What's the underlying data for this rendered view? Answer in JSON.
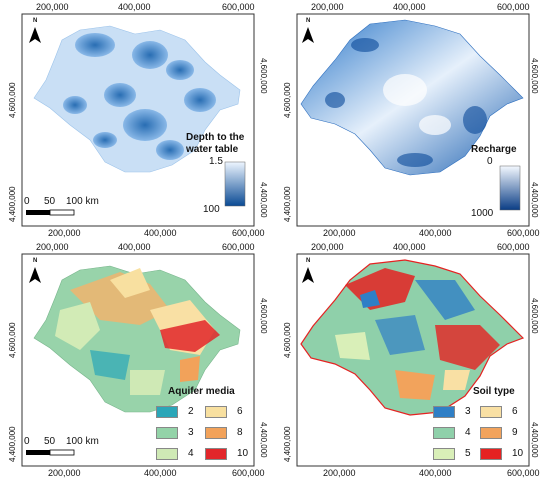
{
  "axes": {
    "x_ticks": [
      "200,000",
      "400,000",
      "600,000"
    ],
    "y_ticks": [
      "4,600,000",
      "4,400,000"
    ]
  },
  "north_label": "N",
  "scale_bar": {
    "labels": [
      "0",
      "50",
      "100 km"
    ]
  },
  "panels": [
    {
      "id": "depth",
      "legend_title": "Depth to the water table",
      "legend_title_lines": [
        "Depth to the",
        "water table"
      ],
      "ramp_min": "1.5",
      "ramp_max": "100",
      "ramp_colors": [
        "#e9f3ff",
        "#08458f"
      ]
    },
    {
      "id": "recharge",
      "legend_title": "Recharge",
      "ramp_min": "0",
      "ramp_max": "1000",
      "ramp_colors": [
        "#f4f9ff",
        "#0a3d85"
      ]
    },
    {
      "id": "aquifer",
      "legend_title": "Aquifer media",
      "classes": [
        {
          "value": "2",
          "color": "#2aa6b8"
        },
        {
          "value": "3",
          "color": "#93d3a8"
        },
        {
          "value": "4",
          "color": "#cfe9b5"
        },
        {
          "value": "6",
          "color": "#f8e0a0"
        },
        {
          "value": "8",
          "color": "#f2a25a"
        },
        {
          "value": "10",
          "color": "#e2262a"
        }
      ]
    },
    {
      "id": "soil",
      "legend_title": "Soil type",
      "classes": [
        {
          "value": "3",
          "color": "#2f7fc6"
        },
        {
          "value": "4",
          "color": "#8fd0aa"
        },
        {
          "value": "5",
          "color": "#d9efb8"
        },
        {
          "value": "6",
          "color": "#f9e0a4"
        },
        {
          "value": "9",
          "color": "#f2a35c"
        },
        {
          "value": "10",
          "color": "#e52222"
        }
      ]
    }
  ]
}
